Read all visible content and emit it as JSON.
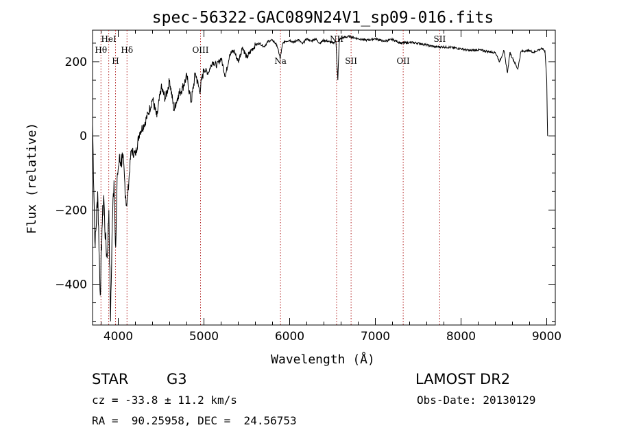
{
  "chart_data": {
    "type": "line",
    "title": "spec-56322-GAC089N24V1_sp09-016.fits",
    "xlabel": "Wavelength (Å)",
    "ylabel": "Flux (relative)",
    "xlim": [
      3700,
      9100
    ],
    "ylim": [
      -510,
      285
    ],
    "x_ticks": [
      4000,
      5000,
      6000,
      7000,
      8000,
      9000
    ],
    "y_ticks": [
      -400,
      -200,
      0,
      200
    ],
    "series": [
      {
        "name": "spectrum",
        "x": [
          3700,
          3730,
          3760,
          3790,
          3810,
          3830,
          3850,
          3870,
          3890,
          3910,
          3930,
          3950,
          3970,
          3990,
          4010,
          4050,
          4100,
          4150,
          4200,
          4250,
          4300,
          4350,
          4400,
          4450,
          4500,
          4550,
          4600,
          4650,
          4700,
          4750,
          4800,
          4850,
          4900,
          4950,
          5000,
          5050,
          5100,
          5150,
          5200,
          5250,
          5300,
          5350,
          5400,
          5450,
          5500,
          5550,
          5600,
          5650,
          5700,
          5750,
          5800,
          5850,
          5890,
          5920,
          5950,
          6000,
          6050,
          6100,
          6150,
          6200,
          6250,
          6300,
          6350,
          6400,
          6450,
          6500,
          6540,
          6562,
          6580,
          6620,
          6700,
          6800,
          6900,
          7000,
          7100,
          7200,
          7300,
          7400,
          7500,
          7600,
          7700,
          7800,
          7900,
          8000,
          8100,
          8200,
          8300,
          8400,
          8450,
          8500,
          8542,
          8570,
          8600,
          8662,
          8700,
          8800,
          8850,
          8900,
          8950,
          8980,
          9000,
          9010
        ],
        "y": [
          30,
          -300,
          -150,
          -430,
          -250,
          -160,
          -280,
          -330,
          -200,
          -500,
          -230,
          -120,
          -300,
          -100,
          -70,
          -60,
          -190,
          -40,
          -50,
          10,
          30,
          60,
          100,
          50,
          130,
          100,
          150,
          70,
          110,
          130,
          160,
          90,
          170,
          120,
          180,
          170,
          200,
          190,
          210,
          160,
          220,
          230,
          200,
          240,
          210,
          230,
          245,
          250,
          240,
          255,
          258,
          245,
          210,
          250,
          255,
          258,
          252,
          260,
          248,
          262,
          255,
          262,
          250,
          258,
          255,
          250,
          255,
          150,
          260,
          265,
          268,
          262,
          258,
          262,
          255,
          260,
          250,
          252,
          250,
          245,
          240,
          240,
          238,
          235,
          230,
          232,
          228,
          225,
          200,
          230,
          170,
          225,
          210,
          180,
          228,
          230,
          225,
          232,
          235,
          228,
          150,
          0
        ]
      }
    ],
    "lines": [
      {
        "label": "Hθ",
        "x": 3798
      },
      {
        "label": "HeI",
        "x": 3889
      },
      {
        "label": "H",
        "x": 3968
      },
      {
        "label": "Hδ",
        "x": 4102
      },
      {
        "label": "OIII",
        "x": 4960
      },
      {
        "label": "Na",
        "x": 5893
      },
      {
        "label": "NII",
        "x": 6548
      },
      {
        "label": "SII",
        "x": 6717
      },
      {
        "label": "OII",
        "x": 7325
      },
      {
        "label": "SII",
        "x": 7751
      }
    ]
  },
  "info": {
    "object_class": "STAR",
    "subclass": "G3",
    "survey": "LAMOST DR2",
    "redshift": "cz = -33.8 ± 11.2 km/s",
    "obs_date": "Obs-Date: 20130129",
    "coords": "RA =  90.25958, DEC =  24.56753"
  }
}
